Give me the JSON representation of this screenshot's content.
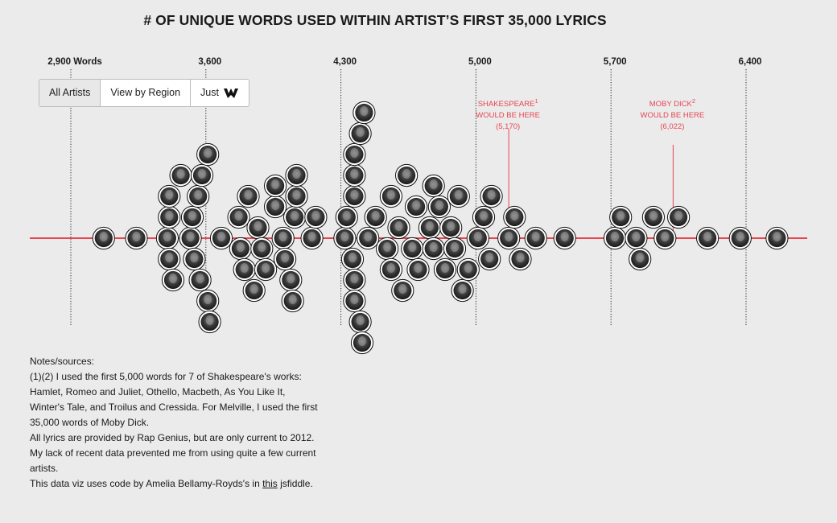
{
  "title": "# OF UNIQUE WORDS USED WITHIN ARTIST’S FIRST 35,000 LYRICS",
  "buttons": {
    "all_artists": "All Artists",
    "view_by_region": "View by Region",
    "just": "Just"
  },
  "annotations": [
    {
      "label": "SHAKESPEARE",
      "sup": "1",
      "line2": "WOULD BE HERE",
      "value_text": "(5,170)",
      "value": 5170
    },
    {
      "label": "MOBY DICK",
      "sup": "2",
      "line2": "WOULD BE HERE",
      "value_text": "(6,022)",
      "value": 6022
    }
  ],
  "notes": {
    "heading": "Notes/sources:",
    "note1": "(1)(2) I used the first 5,000 words for 7 of Shakespeare's works: Hamlet, Romeo and Juliet, Othello, Macbeth, As You Like It, Winter's Tale, and Troilus and Cressida. For Melville, I used the first 35,000 words of Moby Dick.",
    "note2": "All lyrics are provided by Rap Genius, but are only current to 2012. My lack of recent data prevented me from using quite a few current artists.",
    "note3_prefix": "This data viz uses code by Amelia Bellamy-Royds's in ",
    "note3_link": "this",
    "note3_suffix": " jsfiddle."
  },
  "colors": {
    "accent": "#e8454f",
    "background": "#ebebeb",
    "bubble_border": "#111111"
  },
  "chart_data": {
    "type": "scatter",
    "title": "# OF UNIQUE WORDS USED WITHIN ARTIST’S FIRST 35,000 LYRICS",
    "xlabel": "",
    "ylabel": "",
    "x_ticks": [
      {
        "value": 2900,
        "label": "2,900 Words"
      },
      {
        "value": 3600,
        "label": "3,600"
      },
      {
        "value": 4300,
        "label": "4,300"
      },
      {
        "value": 5000,
        "label": "5,000"
      },
      {
        "value": 5700,
        "label": "5,700"
      },
      {
        "value": 6400,
        "label": "6,400"
      }
    ],
    "xlim": [
      2700,
      6700
    ],
    "grid": true,
    "series": [
      {
        "values": [
          3070,
          3240,
          3410,
          3400,
          3410,
          3410,
          3430,
          3470,
          3520,
          3530,
          3540,
          3560,
          3570,
          3580,
          3610,
          3620,
          3610,
          3680,
          3770,
          3780,
          3800,
          3820,
          3850,
          3870,
          3890,
          3910,
          3960,
          3960,
          4000,
          4010,
          4040,
          4050,
          4060,
          4070,
          4070,
          4150,
          4170,
          4320,
          4330,
          4370,
          4370,
          4360,
          4370,
          4370,
          4370,
          4400,
          4410,
          4400,
          4420,
          4440,
          4480,
          4540,
          4560,
          4560,
          4600,
          4620,
          4640,
          4670,
          4690,
          4700,
          4760,
          4780,
          4780,
          4810,
          4840,
          4870,
          4890,
          4910,
          4930,
          4960,
          5010,
          5040,
          5070,
          5080,
          5170,
          5200,
          5230,
          5310,
          5460,
          5720,
          5750,
          5830,
          5850,
          5920,
          5980,
          6050,
          6200,
          6370,
          6560
        ]
      }
    ]
  }
}
